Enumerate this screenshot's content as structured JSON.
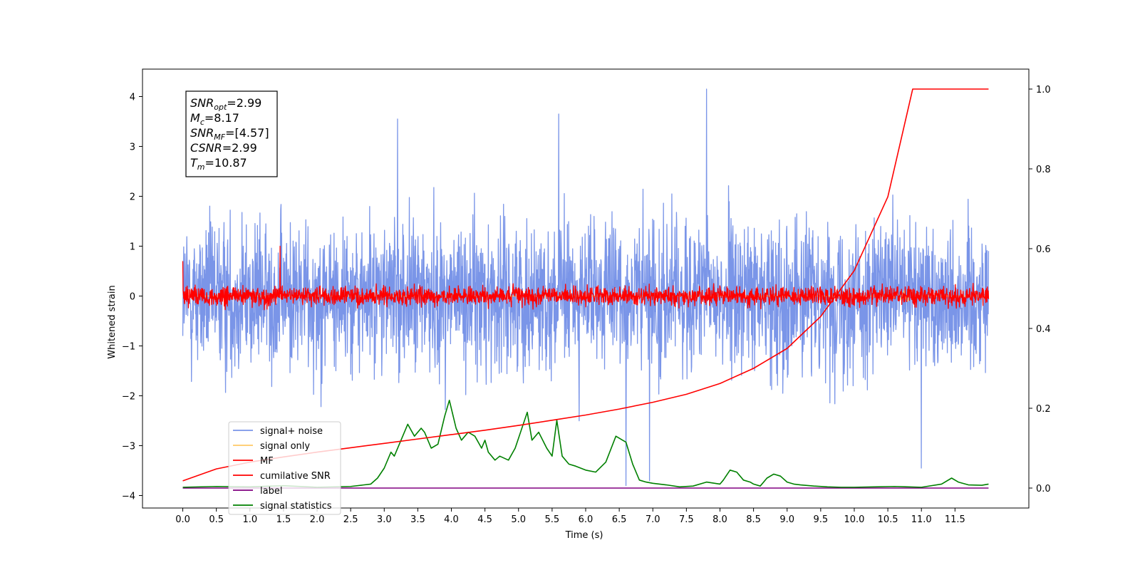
{
  "chart_data": {
    "type": "line",
    "xlabel": "Time (s)",
    "ylabel": "Whitened strain",
    "ylabel_right": "",
    "xlim": [
      -0.6,
      12.6
    ],
    "ylim": [
      -4.25,
      4.55
    ],
    "ylim_right": [
      -0.05,
      1.05
    ],
    "x_ticks": [
      0.0,
      0.5,
      1.0,
      1.5,
      2.0,
      2.5,
      3.0,
      3.5,
      4.0,
      4.5,
      5.0,
      5.5,
      6.0,
      6.5,
      7.0,
      7.5,
      8.0,
      8.5,
      9.0,
      9.5,
      10.0,
      10.5,
      11.0,
      11.5
    ],
    "x_tick_labels": [
      "0.0",
      "0.5",
      "1.0",
      "1.5",
      "2.0",
      "2.5",
      "3.0",
      "3.5",
      "4.0",
      "4.5",
      "5.0",
      "5.5",
      "6.0",
      "6.5",
      "7.0",
      "7.5",
      "8.0",
      "8.5",
      "9.0",
      "9.5",
      "10.0",
      "10.5",
      "11.0",
      "11.5"
    ],
    "y_ticks": [
      4,
      3,
      2,
      1,
      0,
      -1,
      -2,
      -3,
      -4
    ],
    "y_tick_labels": [
      "4",
      "3",
      "2",
      "1",
      "0",
      "−1",
      "−2",
      "−3",
      "−4"
    ],
    "y_right_ticks": [
      1.0,
      0.8,
      0.6,
      0.4,
      0.2,
      0.0
    ],
    "y_right_tick_labels": [
      "1.0",
      "0.8",
      "0.6",
      "0.4",
      "0.2",
      "0.0"
    ],
    "grid": false,
    "legend_position": "lower-left",
    "annotation": {
      "lines": [
        {
          "sym": "SNR",
          "sub": "opt",
          "val": "=2.99"
        },
        {
          "sym": "M",
          "sub": "c",
          "val": "=8.17"
        },
        {
          "sym": "SNR",
          "sub": "MF",
          "val": "=[4.57]"
        },
        {
          "sym": "CSNR",
          "sub": "",
          "val": "=2.99"
        },
        {
          "sym": "T",
          "sub": "m",
          "val": "=10.87"
        }
      ]
    },
    "series": [
      {
        "name": "signal+ noise",
        "axis": "left",
        "color": "#7a95e8",
        "x_range": [
          0.0,
          12.0
        ],
        "amplitude_envelope": [
          -2.2,
          2.3
        ],
        "spikes": [
          [
            3.2,
            3.55
          ],
          [
            5.6,
            3.65
          ],
          [
            7.8,
            4.15
          ],
          [
            11.0,
            -3.45
          ],
          [
            6.6,
            -3.8
          ],
          [
            6.95,
            -3.7
          ]
        ]
      },
      {
        "name": "signal only",
        "axis": "left",
        "color": "#ffc966",
        "x_range": [
          0.0,
          12.0
        ],
        "values_note": "near zero with small chirp near x=10.8"
      },
      {
        "name": "MF",
        "axis": "left",
        "color": "#ff0000",
        "x_range": [
          0.0,
          12.0
        ],
        "amplitude_envelope": [
          -0.35,
          0.45
        ],
        "spikes": [
          [
            0.0,
            0.7
          ],
          [
            1.45,
            1.0
          ]
        ]
      },
      {
        "name": "cumilative SNR",
        "axis": "right",
        "color": "#ff0000",
        "x": [
          0.0,
          0.5,
          1.0,
          1.5,
          2.0,
          2.5,
          3.0,
          3.5,
          4.0,
          4.5,
          5.0,
          5.5,
          6.0,
          6.5,
          7.0,
          7.5,
          8.0,
          8.5,
          9.0,
          9.5,
          10.0,
          10.5,
          10.87,
          12.0
        ],
        "values": [
          0.018,
          0.048,
          0.065,
          0.078,
          0.09,
          0.101,
          0.112,
          0.123,
          0.134,
          0.145,
          0.157,
          0.17,
          0.183,
          0.198,
          0.215,
          0.235,
          0.262,
          0.3,
          0.35,
          0.43,
          0.545,
          0.73,
          1.0,
          1.0
        ]
      },
      {
        "name": "label",
        "axis": "right",
        "color": "#800080",
        "x": [
          0.0,
          12.0
        ],
        "values": [
          0.0,
          0.0
        ]
      },
      {
        "name": "signal statistics",
        "axis": "right",
        "color": "#008000",
        "x": [
          0.0,
          0.5,
          1.0,
          1.5,
          2.0,
          2.5,
          2.8,
          2.9,
          3.0,
          3.1,
          3.15,
          3.25,
          3.35,
          3.45,
          3.55,
          3.6,
          3.7,
          3.8,
          3.9,
          3.97,
          4.07,
          4.15,
          4.25,
          4.35,
          4.45,
          4.5,
          4.55,
          4.65,
          4.72,
          4.85,
          4.95,
          5.05,
          5.13,
          5.2,
          5.3,
          5.42,
          5.5,
          5.57,
          5.65,
          5.75,
          5.85,
          6.0,
          6.15,
          6.3,
          6.45,
          6.55,
          6.6,
          6.7,
          6.8,
          6.9,
          7.0,
          7.2,
          7.4,
          7.6,
          7.8,
          8.0,
          8.05,
          8.15,
          8.25,
          8.35,
          8.45,
          8.5,
          8.6,
          8.7,
          8.8,
          8.9,
          9.0,
          9.1,
          9.2,
          9.4,
          9.6,
          9.8,
          10.0,
          10.3,
          10.6,
          10.8,
          11.0,
          11.3,
          11.45,
          11.55,
          11.7,
          11.9,
          12.0
        ],
        "values": [
          0.002,
          0.004,
          0.003,
          0.006,
          0.002,
          0.004,
          0.01,
          0.025,
          0.05,
          0.09,
          0.08,
          0.12,
          0.16,
          0.13,
          0.15,
          0.14,
          0.1,
          0.11,
          0.18,
          0.22,
          0.15,
          0.12,
          0.14,
          0.13,
          0.1,
          0.12,
          0.09,
          0.07,
          0.08,
          0.07,
          0.1,
          0.15,
          0.19,
          0.12,
          0.14,
          0.1,
          0.08,
          0.17,
          0.08,
          0.06,
          0.055,
          0.045,
          0.04,
          0.065,
          0.13,
          0.12,
          0.115,
          0.06,
          0.02,
          0.015,
          0.012,
          0.008,
          0.003,
          0.005,
          0.015,
          0.01,
          0.02,
          0.045,
          0.04,
          0.02,
          0.015,
          0.01,
          0.005,
          0.025,
          0.035,
          0.03,
          0.015,
          0.01,
          0.008,
          0.005,
          0.003,
          0.002,
          0.002,
          0.003,
          0.004,
          0.003,
          0.002,
          0.01,
          0.025,
          0.015,
          0.008,
          0.007,
          0.01
        ]
      }
    ]
  }
}
